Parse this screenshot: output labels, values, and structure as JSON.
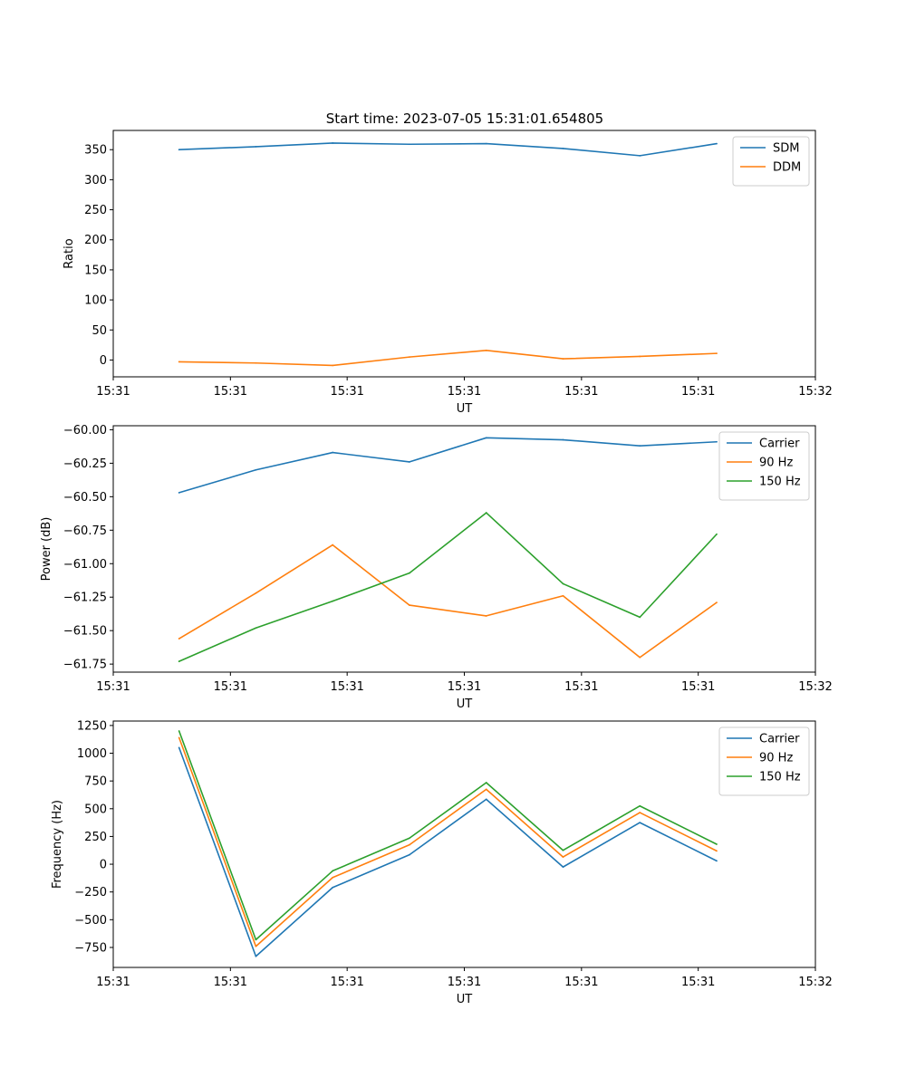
{
  "figure": {
    "title": "Start time: 2023-07-05 15:31:01.654805"
  },
  "colors": {
    "blue": "#1f77b4",
    "orange": "#ff7f0e",
    "green": "#2ca02c",
    "frame": "#000000",
    "legend_border": "#cccccc"
  },
  "chart_data": [
    {
      "type": "line",
      "title": "Start time: 2023-07-05 15:31:01.654805",
      "xlabel": "UT",
      "ylabel": "Ratio",
      "xlim": [
        -0.15,
        1.45
      ],
      "ylim": [
        -28,
        382
      ],
      "xticks": [
        -0.15,
        0.117,
        0.383,
        0.65,
        0.917,
        1.183,
        1.45
      ],
      "xtick_labels": [
        "15:31",
        "15:31",
        "15:31",
        "15:31",
        "15:31",
        "15:31",
        "15:32"
      ],
      "yticks": [
        0,
        50,
        100,
        150,
        200,
        250,
        300,
        350
      ],
      "ytick_labels": [
        "0",
        "50",
        "100",
        "150",
        "200",
        "250",
        "300",
        "350"
      ],
      "x": [
        0,
        0.175,
        0.35,
        0.525,
        0.7,
        0.875,
        1.05,
        1.225
      ],
      "series": [
        {
          "name": "SDM",
          "color": "#1f77b4",
          "values": [
            350,
            355,
            361,
            359,
            360,
            352,
            340,
            360
          ]
        },
        {
          "name": "DDM",
          "color": "#ff7f0e",
          "values": [
            -3,
            -5,
            -9,
            5,
            16,
            2,
            6,
            11
          ]
        }
      ],
      "legend": "top-right"
    },
    {
      "type": "line",
      "title": "",
      "xlabel": "UT",
      "ylabel": "Power (dB)",
      "xlim": [
        -0.15,
        1.45
      ],
      "ylim": [
        -61.81,
        -59.97
      ],
      "xticks": [
        -0.15,
        0.117,
        0.383,
        0.65,
        0.917,
        1.183,
        1.45
      ],
      "xtick_labels": [
        "15:31",
        "15:31",
        "15:31",
        "15:31",
        "15:31",
        "15:31",
        "15:32"
      ],
      "yticks": [
        -61.75,
        -61.5,
        -61.25,
        -61.0,
        -60.75,
        -60.5,
        -60.25,
        -60.0
      ],
      "ytick_labels": [
        "−61.75",
        "−61.50",
        "−61.25",
        "−61.00",
        "−60.75",
        "−60.50",
        "−60.25",
        "−60.00"
      ],
      "x": [
        0,
        0.175,
        0.35,
        0.525,
        0.7,
        0.875,
        1.05,
        1.225
      ],
      "series": [
        {
          "name": "Carrier",
          "color": "#1f77b4",
          "values": [
            -60.47,
            -60.3,
            -60.17,
            -60.24,
            -60.06,
            -60.075,
            -60.12,
            -60.09
          ]
        },
        {
          "name": "90 Hz",
          "color": "#ff7f0e",
          "values": [
            -61.56,
            -61.22,
            -60.86,
            -61.31,
            -61.39,
            -61.24,
            -61.7,
            -61.29
          ]
        },
        {
          "name": "150 Hz",
          "color": "#2ca02c",
          "values": [
            -61.73,
            -61.48,
            -61.28,
            -61.07,
            -60.62,
            -61.15,
            -61.4,
            -60.78
          ]
        }
      ],
      "legend": "top-right"
    },
    {
      "type": "line",
      "title": "",
      "xlabel": "UT",
      "ylabel": "Frequency (Hz)",
      "xlim": [
        -0.15,
        1.45
      ],
      "ylim": [
        -930,
        1290
      ],
      "xticks": [
        -0.15,
        0.117,
        0.383,
        0.65,
        0.917,
        1.183,
        1.45
      ],
      "xtick_labels": [
        "15:31",
        "15:31",
        "15:31",
        "15:31",
        "15:31",
        "15:31",
        "15:32"
      ],
      "yticks": [
        -750,
        -500,
        -250,
        0,
        250,
        500,
        750,
        1000,
        1250
      ],
      "ytick_labels": [
        "−750",
        "−500",
        "−250",
        "0",
        "250",
        "500",
        "750",
        "1000",
        "1250"
      ],
      "x": [
        0,
        0.175,
        0.35,
        0.525,
        0.7,
        0.875,
        1.05,
        1.225
      ],
      "series": [
        {
          "name": "Carrier",
          "color": "#1f77b4",
          "values": [
            1050,
            -830,
            -210,
            85,
            585,
            -25,
            375,
            30
          ]
        },
        {
          "name": "90 Hz",
          "color": "#ff7f0e",
          "values": [
            1140,
            -740,
            -120,
            175,
            675,
            65,
            465,
            120
          ]
        },
        {
          "name": "150 Hz",
          "color": "#2ca02c",
          "values": [
            1200,
            -680,
            -60,
            235,
            735,
            125,
            525,
            180
          ]
        }
      ],
      "legend": "top-right"
    }
  ]
}
